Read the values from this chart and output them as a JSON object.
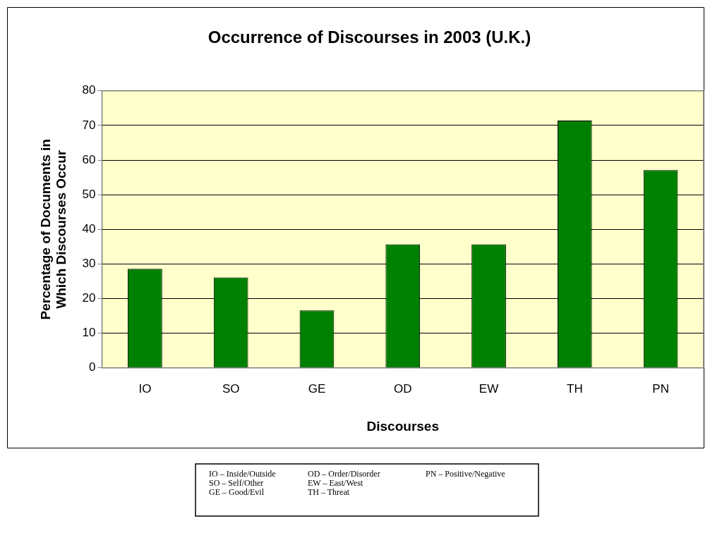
{
  "chart_data": {
    "type": "bar",
    "title": "Occurrence of Discourses in 2003 (U.K.)",
    "xlabel": "Discourses",
    "ylabel": "Percentage of Documents in Which Discourses Occur",
    "categories": [
      "IO",
      "SO",
      "GE",
      "OD",
      "EW",
      "TH",
      "PN"
    ],
    "values": [
      28.6,
      26.1,
      16.6,
      35.7,
      35.7,
      71.4,
      57.1
    ],
    "color": "#008000",
    "ylim": [
      0,
      80
    ],
    "yticks": [
      0,
      10,
      20,
      30,
      40,
      50,
      60,
      70,
      80
    ],
    "grid": "y",
    "legend": false,
    "annotations": [
      "IO – Inside/Outside",
      "SO – Self/Other",
      "GE – Good/Evil",
      "OD – Order/Disorder",
      "EW – East/West",
      "TH – Threat",
      "PN – Positive/Negative"
    ]
  }
}
